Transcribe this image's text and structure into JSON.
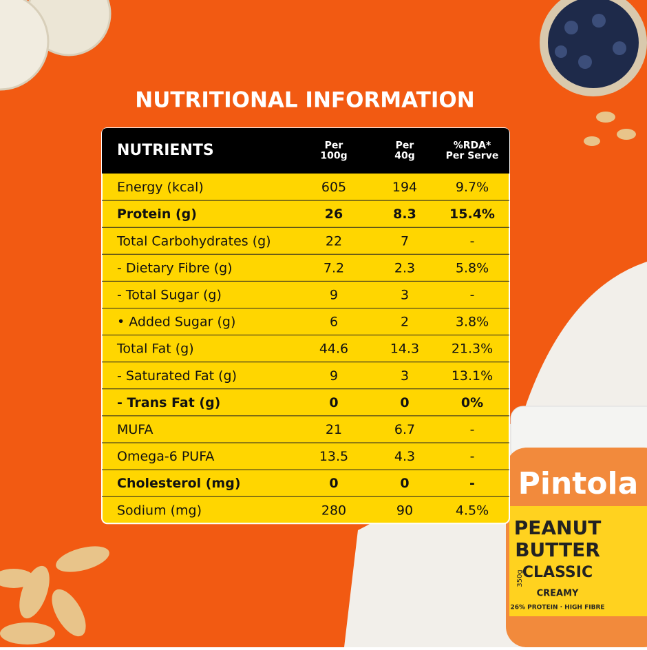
{
  "title": "NUTRITIONAL INFORMATION",
  "table": {
    "header": [
      [
        "NUTRIENTS"
      ],
      [
        "Per",
        "100g"
      ],
      [
        "Per",
        "40g"
      ],
      [
        "%RDA*",
        "Per Serve"
      ]
    ],
    "rows": [
      {
        "cells": [
          "Energy (kcal)",
          "605",
          "194",
          "9.7%"
        ],
        "bold": false
      },
      {
        "cells": [
          "Protein (g)",
          "26",
          "8.3",
          "15.4%"
        ],
        "bold": true
      },
      {
        "cells": [
          "Total Carbohydrates (g)",
          "22",
          "7",
          "-"
        ],
        "bold": false
      },
      {
        "cells": [
          "- Dietary Fibre (g)",
          "7.2",
          "2.3",
          "5.8%"
        ],
        "bold": false
      },
      {
        "cells": [
          "- Total Sugar (g)",
          "9",
          "3",
          "-"
        ],
        "bold": false
      },
      {
        "cells": [
          "• Added Sugar (g)",
          "6",
          "2",
          "3.8%"
        ],
        "bold": false
      },
      {
        "cells": [
          "Total Fat (g)",
          "44.6",
          "14.3",
          "21.3%"
        ],
        "bold": false
      },
      {
        "cells": [
          "- Saturated Fat (g)",
          "9",
          "3",
          "13.1%"
        ],
        "bold": false
      },
      {
        "cells": [
          "- Trans Fat (g)",
          "0",
          "0",
          "0%"
        ],
        "bold": true
      },
      {
        "cells": [
          "MUFA",
          "21",
          "6.7",
          "-"
        ],
        "bold": false
      },
      {
        "cells": [
          "Omega-6 PUFA",
          "13.5",
          "4.3",
          "-"
        ],
        "bold": false
      },
      {
        "cells": [
          "Cholesterol (mg)",
          "0",
          "0",
          "-"
        ],
        "bold": true
      },
      {
        "cells": [
          "Sodium (mg)",
          "280",
          "90",
          "4.5%"
        ],
        "bold": false
      }
    ]
  },
  "jar": {
    "brand": "Pintola",
    "product": [
      "PEANUT",
      "BUTTER"
    ],
    "variant": "CLASSIC",
    "texture": "CREAMY",
    "claims": "26% PROTEIN · HIGH FIBRE",
    "weight": "350g"
  }
}
